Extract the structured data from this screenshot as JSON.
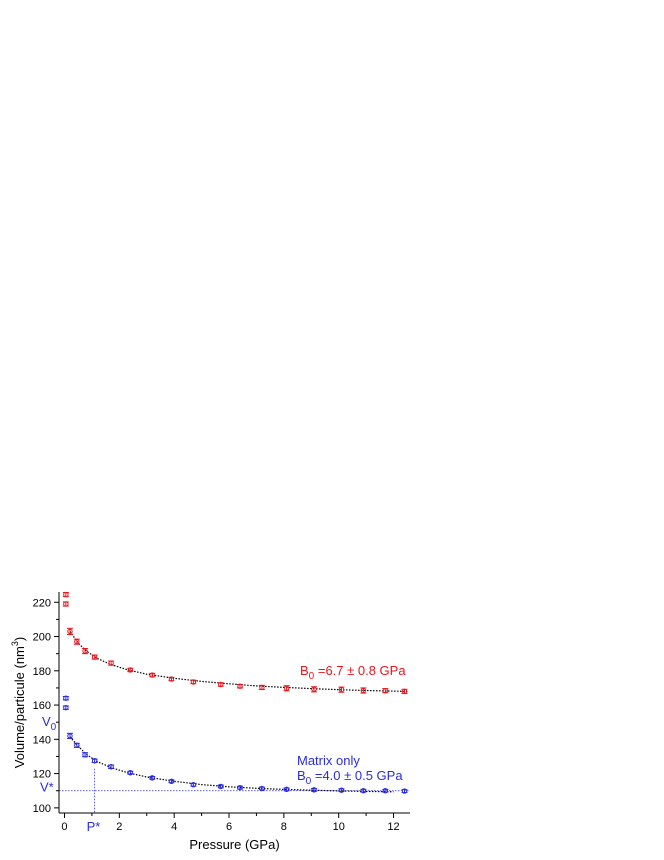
{
  "chart_data": {
    "type": "scatter",
    "xlabel": "Pressure (GPa)",
    "ylabel_main": "Volume/particule (nm",
    "ylabel_sup": "3",
    "ylabel_close": ")",
    "xlim": [
      -0.2,
      12.6
    ],
    "ylim": [
      97,
      226
    ],
    "x_ticks": [
      0,
      2,
      4,
      6,
      8,
      10,
      12
    ],
    "y_ticks": [
      100,
      120,
      140,
      160,
      180,
      200,
      220
    ],
    "x_tick_labels": [
      "0",
      "2",
      "4",
      "6",
      "8",
      "10",
      "12"
    ],
    "y_tick_labels": [
      "100",
      "120",
      "140",
      "160",
      "180",
      "200",
      "220"
    ],
    "series": [
      {
        "color": "#e8141c",
        "points": [
          {
            "x": 0.05,
            "y": 224.5,
            "err": 1.2
          },
          {
            "x": 0.05,
            "y": 219.0,
            "err": 1.2
          },
          {
            "x": 0.2,
            "y": 203.0,
            "err": 1.8
          },
          {
            "x": 0.45,
            "y": 197.0,
            "err": 1.5
          },
          {
            "x": 0.75,
            "y": 191.5,
            "err": 1.5
          },
          {
            "x": 1.1,
            "y": 188.0,
            "err": 1.2
          },
          {
            "x": 1.7,
            "y": 184.5,
            "err": 1.2
          },
          {
            "x": 2.4,
            "y": 180.5,
            "err": 1.0
          },
          {
            "x": 3.2,
            "y": 177.5,
            "err": 1.0
          },
          {
            "x": 3.9,
            "y": 175.2,
            "err": 1.0
          },
          {
            "x": 4.7,
            "y": 173.5,
            "err": 1.0
          },
          {
            "x": 5.7,
            "y": 172.0,
            "err": 1.0
          },
          {
            "x": 6.4,
            "y": 171.0,
            "err": 1.0
          },
          {
            "x": 7.2,
            "y": 170.3,
            "err": 1.2
          },
          {
            "x": 8.1,
            "y": 169.8,
            "err": 1.5
          },
          {
            "x": 9.1,
            "y": 169.2,
            "err": 1.5
          },
          {
            "x": 10.1,
            "y": 169.0,
            "err": 1.5
          },
          {
            "x": 10.9,
            "y": 168.5,
            "err": 1.5
          },
          {
            "x": 11.7,
            "y": 168.4,
            "err": 1.2
          },
          {
            "x": 12.4,
            "y": 168.0,
            "err": 1.2
          }
        ],
        "fit": [
          {
            "x": 0.2,
            "y": 203.0
          },
          {
            "x": 0.5,
            "y": 196.2
          },
          {
            "x": 0.8,
            "y": 191.5
          },
          {
            "x": 1.2,
            "y": 187.2
          },
          {
            "x": 1.7,
            "y": 183.6
          },
          {
            "x": 2.3,
            "y": 180.6
          },
          {
            "x": 3.0,
            "y": 178.0
          },
          {
            "x": 4.0,
            "y": 175.6
          },
          {
            "x": 5.0,
            "y": 173.8
          },
          {
            "x": 6.0,
            "y": 172.4
          },
          {
            "x": 7.0,
            "y": 171.2
          },
          {
            "x": 8.0,
            "y": 170.3
          },
          {
            "x": 9.0,
            "y": 169.6
          },
          {
            "x": 10.0,
            "y": 169.0
          },
          {
            "x": 11.0,
            "y": 168.5
          },
          {
            "x": 12.5,
            "y": 168.0
          }
        ]
      },
      {
        "color": "#2a2ae6",
        "points": [
          {
            "x": 0.05,
            "y": 164.0,
            "err": 1.0
          },
          {
            "x": 0.05,
            "y": 158.5,
            "err": 1.0
          },
          {
            "x": 0.2,
            "y": 142.0,
            "err": 1.5
          },
          {
            "x": 0.45,
            "y": 136.5,
            "err": 1.2
          },
          {
            "x": 0.75,
            "y": 131.0,
            "err": 1.2
          },
          {
            "x": 1.1,
            "y": 127.5,
            "err": 1.0
          },
          {
            "x": 1.7,
            "y": 124.0,
            "err": 1.0
          },
          {
            "x": 2.4,
            "y": 120.5,
            "err": 0.8
          },
          {
            "x": 3.2,
            "y": 117.5,
            "err": 0.8
          },
          {
            "x": 3.9,
            "y": 115.5,
            "err": 0.8
          },
          {
            "x": 4.7,
            "y": 113.5,
            "err": 0.8
          },
          {
            "x": 5.7,
            "y": 112.5,
            "err": 0.8
          },
          {
            "x": 6.4,
            "y": 111.8,
            "err": 0.8
          },
          {
            "x": 7.2,
            "y": 111.3,
            "err": 0.8
          },
          {
            "x": 8.1,
            "y": 110.8,
            "err": 0.8
          },
          {
            "x": 9.1,
            "y": 110.5,
            "err": 0.8
          },
          {
            "x": 10.1,
            "y": 110.3,
            "err": 0.8
          },
          {
            "x": 10.9,
            "y": 110.0,
            "err": 0.8
          },
          {
            "x": 11.7,
            "y": 110.0,
            "err": 0.8
          },
          {
            "x": 12.4,
            "y": 109.8,
            "err": 0.8
          }
        ],
        "fit": [
          {
            "x": 0.2,
            "y": 141.5
          },
          {
            "x": 0.5,
            "y": 136.0
          },
          {
            "x": 0.8,
            "y": 131.2
          },
          {
            "x": 1.2,
            "y": 127.0
          },
          {
            "x": 1.7,
            "y": 123.5
          },
          {
            "x": 2.3,
            "y": 120.5
          },
          {
            "x": 3.0,
            "y": 118.0
          },
          {
            "x": 4.0,
            "y": 115.5
          },
          {
            "x": 5.0,
            "y": 113.6
          },
          {
            "x": 6.0,
            "y": 112.3
          },
          {
            "x": 7.0,
            "y": 111.4
          },
          {
            "x": 8.0,
            "y": 110.8
          },
          {
            "x": 9.0,
            "y": 110.3
          },
          {
            "x": 10.0,
            "y": 109.9
          },
          {
            "x": 11.0,
            "y": 109.6
          },
          {
            "x": 12.0,
            "y": 109.4
          }
        ]
      }
    ],
    "reference": {
      "v_star_y": 110,
      "p_star_x": 1.1,
      "v_star_label": "V*",
      "p_star_label": "P*",
      "v0_label": "V",
      "v0_sub": "0",
      "v0_y": 150,
      "color": "#2a2ae6"
    },
    "annotations": {
      "red_b_prefix": "B",
      "red_b_sub": "0",
      "red_b_value": " =6.7 ± 0.8 GPa",
      "red_color": "#e8141c",
      "blue_line1": "Matrix only",
      "blue_b_prefix": "B",
      "blue_b_sub": "0",
      "blue_b_value": " =4.0 ± 0.5 GPa",
      "blue_color": "#2a2ae6"
    }
  }
}
